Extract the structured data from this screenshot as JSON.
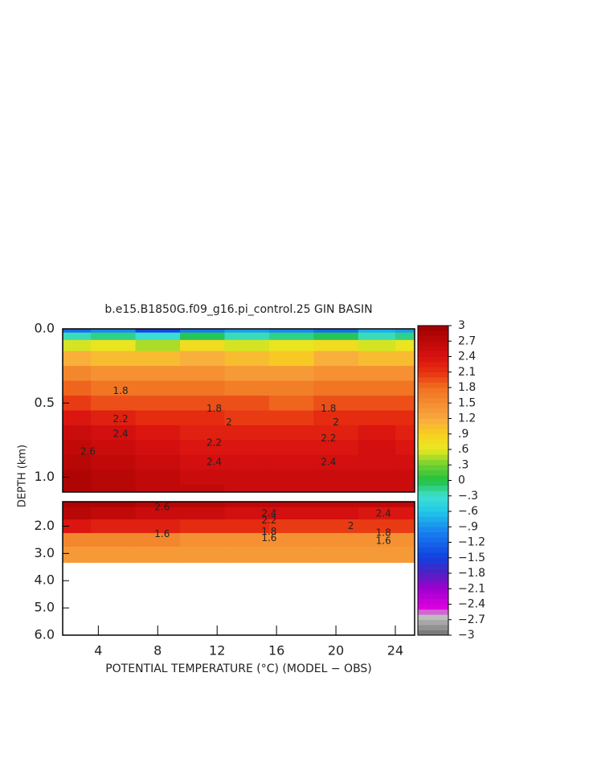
{
  "chart_data": {
    "type": "contour",
    "title": "b.e15.B1850G.f09_g16.pi_control.25 GIN BASIN",
    "xlabel": "POTENTIAL TEMPERATURE (°C) (MODEL − OBS)",
    "ylabel": "DEPTH (km)",
    "xlim": [
      1.6,
      25.3
    ],
    "xticks": [
      4,
      8,
      12,
      16,
      20,
      24
    ],
    "x": [
      2,
      5,
      8,
      11,
      14,
      17,
      20,
      23,
      25
    ],
    "contour_interval": 0.1,
    "clim": [
      -3,
      3
    ],
    "colormap": [
      {
        "value": -3,
        "color": "#707070"
      },
      {
        "value": -2.6,
        "color": "#c8c8c8"
      },
      {
        "value": -2.5,
        "color": "#e000e0"
      },
      {
        "value": -2.1,
        "color": "#a000d0"
      },
      {
        "value": -1.8,
        "color": "#5020c0"
      },
      {
        "value": -1.5,
        "color": "#1040e0"
      },
      {
        "value": -1.0,
        "color": "#1880f0"
      },
      {
        "value": -0.6,
        "color": "#20c8e8"
      },
      {
        "value": -0.3,
        "color": "#40e0d0"
      },
      {
        "value": 0,
        "color": "#20c040"
      },
      {
        "value": 0.3,
        "color": "#70d030"
      },
      {
        "value": 0.6,
        "color": "#e8e820"
      },
      {
        "value": 0.9,
        "color": "#f8d020"
      },
      {
        "value": 1.2,
        "color": "#f8a840"
      },
      {
        "value": 1.8,
        "color": "#f07020"
      },
      {
        "value": 2.1,
        "color": "#e83010"
      },
      {
        "value": 2.4,
        "color": "#d81010"
      },
      {
        "value": 3,
        "color": "#a00000"
      }
    ],
    "cticks": [
      3,
      2.7,
      2.4,
      2.1,
      1.8,
      1.5,
      1.2,
      {
        "value": 0.9,
        "label": ".9"
      },
      {
        "value": 0.6,
        "label": ".6"
      },
      {
        "value": 0.3,
        "label": ".3"
      },
      0,
      {
        "value": -0.3,
        "label": "−.3"
      },
      {
        "value": -0.6,
        "label": "−.6"
      },
      {
        "value": -0.9,
        "label": "−.9"
      },
      {
        "value": -1.2,
        "label": "−1.2"
      },
      {
        "value": -1.5,
        "label": "−1.5"
      },
      {
        "value": -1.8,
        "label": "−1.8"
      },
      {
        "value": -2.1,
        "label": "−2.1"
      },
      {
        "value": -2.4,
        "label": "−2.4"
      },
      {
        "value": -2.7,
        "label": "−2.7"
      },
      {
        "value": -3,
        "label": "−3"
      }
    ],
    "panels": [
      {
        "ylim": [
          0,
          1.1
        ],
        "yticks": [
          {
            "value": 0,
            "label": "0.0"
          },
          0.5,
          {
            "value": 1,
            "label": "1.0"
          }
        ],
        "depths": [
          0,
          0.05,
          0.1,
          0.2,
          0.3,
          0.4,
          0.5,
          0.6,
          0.7,
          0.8,
          0.9,
          1.0,
          1.1
        ],
        "z": [
          [
            -1.2,
            -1.0,
            -1.5,
            -1.1,
            -0.9,
            -1.0,
            -1.2,
            -0.8,
            -0.9
          ],
          [
            -0.3,
            -0.2,
            -0.4,
            -0.1,
            -0.3,
            -0.2,
            -0.1,
            -0.3,
            -0.2
          ],
          [
            0.5,
            0.6,
            0.4,
            0.7,
            0.5,
            0.6,
            0.7,
            0.5,
            0.6
          ],
          [
            1.1,
            1.0,
            1.0,
            1.1,
            1.0,
            0.9,
            1.1,
            1.0,
            1.0
          ],
          [
            1.5,
            1.4,
            1.4,
            1.4,
            1.3,
            1.3,
            1.4,
            1.4,
            1.4
          ],
          [
            1.8,
            1.7,
            1.7,
            1.7,
            1.6,
            1.6,
            1.7,
            1.7,
            1.7
          ],
          [
            2.0,
            1.9,
            1.9,
            1.9,
            1.9,
            1.8,
            1.9,
            1.9,
            1.9
          ],
          [
            2.3,
            2.2,
            2.1,
            2.1,
            2.0,
            2.0,
            2.1,
            2.1,
            2.1
          ],
          [
            2.5,
            2.4,
            2.3,
            2.2,
            2.2,
            2.2,
            2.2,
            2.3,
            2.2
          ],
          [
            2.6,
            2.5,
            2.4,
            2.3,
            2.3,
            2.3,
            2.3,
            2.4,
            2.3
          ],
          [
            2.7,
            2.6,
            2.5,
            2.4,
            2.4,
            2.4,
            2.4,
            2.4,
            2.4
          ],
          [
            2.8,
            2.7,
            2.6,
            2.5,
            2.5,
            2.5,
            2.5,
            2.5,
            2.5
          ],
          [
            2.8,
            2.7,
            2.6,
            2.6,
            2.5,
            2.5,
            2.5,
            2.5,
            2.5
          ]
        ],
        "annotations": [
          {
            "text": "1.8",
            "x": 5.5,
            "depth": 0.42
          },
          {
            "text": "2.2",
            "x": 5.5,
            "depth": 0.61
          },
          {
            "text": "2.4",
            "x": 5.5,
            "depth": 0.71
          },
          {
            "text": "2.6",
            "x": 3.3,
            "depth": 0.83
          },
          {
            "text": "1.8",
            "x": 11.8,
            "depth": 0.54
          },
          {
            "text": "2",
            "x": 12.8,
            "depth": 0.63
          },
          {
            "text": "2.2",
            "x": 11.8,
            "depth": 0.77
          },
          {
            "text": "2.4",
            "x": 11.8,
            "depth": 0.9
          },
          {
            "text": "1.8",
            "x": 19.5,
            "depth": 0.54
          },
          {
            "text": "2",
            "x": 20,
            "depth": 0.63
          },
          {
            "text": "2.2",
            "x": 19.5,
            "depth": 0.74
          },
          {
            "text": "2.4",
            "x": 19.5,
            "depth": 0.9
          }
        ]
      },
      {
        "ylim": [
          1.1,
          6
        ],
        "yticks": [
          {
            "value": 2,
            "label": "2.0"
          },
          {
            "value": 3,
            "label": "3.0"
          },
          {
            "value": 4,
            "label": "4.0"
          },
          {
            "value": 5,
            "label": "5.0"
          },
          {
            "value": 6,
            "label": "6.0"
          }
        ],
        "depths": [
          1.1,
          1.5,
          2.0,
          2.5,
          3.0,
          3.33
        ],
        "z": [
          [
            2.8,
            2.8,
            2.7,
            2.7,
            2.6,
            2.6,
            2.6,
            2.6,
            2.6
          ],
          [
            2.7,
            2.6,
            2.5,
            2.5,
            2.4,
            2.4,
            2.4,
            2.3,
            2.3
          ],
          [
            2.3,
            2.2,
            2.2,
            2.1,
            2.1,
            2.0,
            2.0,
            2.0,
            2.0
          ],
          [
            1.5,
            1.5,
            1.5,
            1.4,
            1.4,
            1.4,
            1.4,
            1.4,
            1.4
          ],
          [
            1.3,
            1.3,
            1.3,
            1.3,
            1.3,
            1.3,
            1.3,
            1.3,
            1.3
          ],
          [
            1.3,
            1.3,
            1.3,
            1.3,
            1.3,
            1.3,
            1.3,
            1.3,
            1.3
          ]
        ],
        "annotations": [
          {
            "text": "2.6",
            "x": 8.3,
            "depth": 1.3
          },
          {
            "text": "1.6",
            "x": 8.3,
            "depth": 2.3
          },
          {
            "text": "2.4",
            "x": 15.5,
            "depth": 1.55
          },
          {
            "text": "2.2",
            "x": 15.5,
            "depth": 1.8
          },
          {
            "text": "1.8",
            "x": 15.5,
            "depth": 2.2
          },
          {
            "text": "1.6",
            "x": 15.5,
            "depth": 2.45
          },
          {
            "text": "2",
            "x": 21,
            "depth": 2.0
          },
          {
            "text": "2.4",
            "x": 23.2,
            "depth": 1.55
          },
          {
            "text": "1.8",
            "x": 23.2,
            "depth": 2.25
          },
          {
            "text": "1.6",
            "x": 23.2,
            "depth": 2.55
          }
        ]
      }
    ]
  }
}
